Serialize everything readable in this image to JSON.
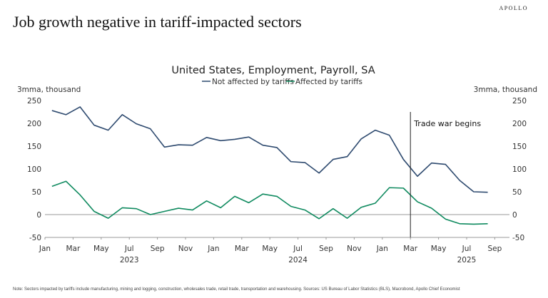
{
  "page": {
    "title": "Job growth negative in tariff-impacted sectors",
    "logo": "APOLLO",
    "note": "Note: Sectors impacted by tariffs include manufacturing, mining and logging, construction, wholesales trade, retail trade, transportation and warehousing. Sources: US Bureau of Labor Statistics (BLS), Macrobond, Apollo Chief Economist"
  },
  "chart_data": {
    "type": "line",
    "title": "United States, Employment, Payroll, SA",
    "ylabel_left": "3mma, thousand",
    "ylabel_right": "3mma, thousand",
    "ylim": [
      -50,
      250
    ],
    "yticks": [
      -50,
      0,
      50,
      100,
      150,
      200,
      250
    ],
    "xtick_labels": [
      "Jan",
      "Mar",
      "May",
      "Jul",
      "Sep",
      "Nov",
      "Jan",
      "Mar",
      "May",
      "Jul",
      "Sep",
      "Nov",
      "Jan",
      "Mar",
      "May",
      "Jul",
      "Sep"
    ],
    "year_labels": [
      "2023",
      "2024",
      "2025"
    ],
    "x": [
      "2023-01",
      "2023-02",
      "2023-03",
      "2023-04",
      "2023-05",
      "2023-06",
      "2023-07",
      "2023-08",
      "2023-09",
      "2023-10",
      "2023-11",
      "2023-12",
      "2024-01",
      "2024-02",
      "2024-03",
      "2024-04",
      "2024-05",
      "2024-06",
      "2024-07",
      "2024-08",
      "2024-09",
      "2024-10",
      "2024-11",
      "2024-12",
      "2025-01",
      "2025-02",
      "2025-03",
      "2025-04",
      "2025-05",
      "2025-06",
      "2025-07",
      "2025-08"
    ],
    "series": [
      {
        "name": "Not affected by tariffs",
        "color": "#2e4a6f",
        "values": [
          228,
          219,
          236,
          196,
          185,
          219,
          199,
          188,
          148,
          153,
          152,
          169,
          162,
          165,
          170,
          152,
          147,
          116,
          114,
          91,
          121,
          127,
          166,
          185,
          174,
          121,
          84,
          113,
          110,
          75,
          50,
          49
        ]
      },
      {
        "name": "Affected by tariffs",
        "color": "#0f8a5f",
        "values": [
          62,
          73,
          43,
          7,
          -8,
          15,
          13,
          0,
          7,
          14,
          10,
          30,
          15,
          40,
          26,
          45,
          40,
          18,
          10,
          -9,
          13,
          -8,
          16,
          25,
          59,
          58,
          28,
          14,
          -10,
          -20,
          -21,
          -20
        ]
      }
    ],
    "annotation": {
      "label": "Trade war begins",
      "x": "2025-03"
    },
    "grid": false,
    "legend": "top-center"
  }
}
